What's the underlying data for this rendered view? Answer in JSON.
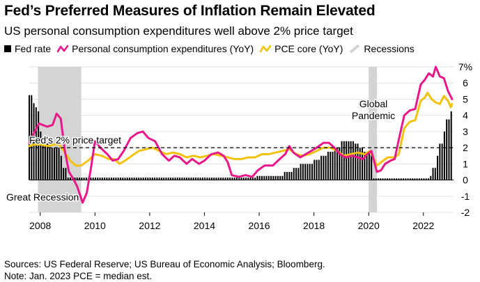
{
  "chart_data": {
    "type": "line",
    "title": "Fed’s Preferred Measures of Inflation Remain Elevated",
    "subtitle": "US personal consumption expenditures well above 2% price target",
    "legend": [
      {
        "key": "fed",
        "label": "Fed rate",
        "color": "#000000",
        "kind": "bar"
      },
      {
        "key": "pce",
        "label": "Personal consumption expenditures (YoY)",
        "color": "#e8178a",
        "kind": "line"
      },
      {
        "key": "core",
        "label": "PCE core (YoY)",
        "color": "#f2c20f",
        "kind": "line"
      },
      {
        "key": "rec",
        "label": "Recessions",
        "color": "#d4d4d4",
        "kind": "band"
      }
    ],
    "y_ticks": [
      "7%",
      "6",
      "5",
      "4",
      "3",
      "2",
      "1",
      "0",
      "-1",
      "-2"
    ],
    "y_tick_values": [
      7,
      6,
      5,
      4,
      3,
      2,
      1,
      0,
      -1,
      -2
    ],
    "ylim": [
      -2,
      7
    ],
    "xlim": [
      2007.6,
      2023.1
    ],
    "x_ticks": [
      "2008",
      "2010",
      "2012",
      "2014",
      "2016",
      "2018",
      "2020",
      "2022"
    ],
    "x_tick_values": [
      2008,
      2010,
      2012,
      2014,
      2016,
      2018,
      2020,
      2022
    ],
    "recessions": [
      [
        2007.92,
        2009.5
      ],
      [
        2020.0,
        2020.3
      ]
    ],
    "target": {
      "value": 2,
      "label": "Fed’s 2% price target"
    },
    "annotations": [
      {
        "text": "Great Recession"
      },
      {
        "text": "Global"
      },
      {
        "text": "Pandemic"
      }
    ],
    "fed_rate": [
      [
        2007.6,
        5.25
      ],
      [
        2007.7,
        4.75
      ],
      [
        2007.8,
        4.5
      ],
      [
        2007.9,
        4.25
      ],
      [
        2008.0,
        3.0
      ],
      [
        2008.1,
        2.25
      ],
      [
        2008.3,
        2.0
      ],
      [
        2008.75,
        1.5
      ],
      [
        2008.85,
        0.75
      ],
      [
        2008.95,
        0.15
      ],
      [
        2009.0,
        0.15
      ],
      [
        2015.9,
        0.25
      ],
      [
        2016.9,
        0.5
      ],
      [
        2017.2,
        0.75
      ],
      [
        2017.45,
        1.0
      ],
      [
        2017.95,
        1.25
      ],
      [
        2018.2,
        1.5
      ],
      [
        2018.45,
        1.75
      ],
      [
        2018.7,
        2.0
      ],
      [
        2018.95,
        2.4
      ],
      [
        2019.5,
        2.25
      ],
      [
        2019.65,
        2.0
      ],
      [
        2019.8,
        1.75
      ],
      [
        2020.15,
        0.1
      ],
      [
        2022.2,
        0.25
      ],
      [
        2022.3,
        0.75
      ],
      [
        2022.45,
        1.5
      ],
      [
        2022.55,
        2.25
      ],
      [
        2022.7,
        3.0
      ],
      [
        2022.85,
        3.75
      ],
      [
        2022.95,
        4.25
      ],
      [
        2023.05,
        4.5
      ]
    ],
    "pce": [
      [
        2007.6,
        2.3
      ],
      [
        2007.8,
        3.0
      ],
      [
        2007.95,
        3.5
      ],
      [
        2008.25,
        3.3
      ],
      [
        2008.45,
        3.4
      ],
      [
        2008.6,
        4.1
      ],
      [
        2008.75,
        3.8
      ],
      [
        2008.9,
        1.8
      ],
      [
        2009.05,
        0.5
      ],
      [
        2009.2,
        0.1
      ],
      [
        2009.35,
        -0.4
      ],
      [
        2009.55,
        -1.4
      ],
      [
        2009.7,
        -0.8
      ],
      [
        2009.85,
        0.7
      ],
      [
        2010.0,
        2.4
      ],
      [
        2010.2,
        2.0
      ],
      [
        2010.45,
        1.6
      ],
      [
        2010.65,
        1.2
      ],
      [
        2010.85,
        1.3
      ],
      [
        2011.05,
        1.8
      ],
      [
        2011.3,
        2.6
      ],
      [
        2011.55,
        2.9
      ],
      [
        2011.75,
        3.0
      ],
      [
        2011.95,
        2.6
      ],
      [
        2012.2,
        2.4
      ],
      [
        2012.45,
        1.6
      ],
      [
        2012.7,
        1.2
      ],
      [
        2012.9,
        1.5
      ],
      [
        2013.1,
        1.4
      ],
      [
        2013.35,
        1.0
      ],
      [
        2013.55,
        1.3
      ],
      [
        2013.8,
        1.0
      ],
      [
        2014.0,
        1.2
      ],
      [
        2014.25,
        1.6
      ],
      [
        2014.5,
        1.7
      ],
      [
        2014.7,
        1.5
      ],
      [
        2014.85,
        1.1
      ],
      [
        2015.0,
        0.3
      ],
      [
        2015.25,
        0.2
      ],
      [
        2015.5,
        0.3
      ],
      [
        2015.75,
        0.2
      ],
      [
        2015.95,
        0.6
      ],
      [
        2016.2,
        0.9
      ],
      [
        2016.5,
        0.9
      ],
      [
        2016.75,
        1.3
      ],
      [
        2016.95,
        1.6
      ],
      [
        2017.1,
        2.1
      ],
      [
        2017.25,
        1.7
      ],
      [
        2017.5,
        1.4
      ],
      [
        2017.7,
        1.6
      ],
      [
        2017.9,
        1.8
      ],
      [
        2018.1,
        2.0
      ],
      [
        2018.35,
        2.3
      ],
      [
        2018.55,
        2.3
      ],
      [
        2018.75,
        2.0
      ],
      [
        2018.95,
        1.6
      ],
      [
        2019.15,
        1.4
      ],
      [
        2019.4,
        1.5
      ],
      [
        2019.6,
        1.4
      ],
      [
        2019.8,
        1.3
      ],
      [
        2019.95,
        1.6
      ],
      [
        2020.1,
        1.8
      ],
      [
        2020.3,
        0.5
      ],
      [
        2020.45,
        0.6
      ],
      [
        2020.6,
        1.0
      ],
      [
        2020.8,
        1.2
      ],
      [
        2020.95,
        1.3
      ],
      [
        2021.1,
        2.5
      ],
      [
        2021.3,
        4.0
      ],
      [
        2021.5,
        4.3
      ],
      [
        2021.7,
        4.4
      ],
      [
        2021.9,
        5.9
      ],
      [
        2022.05,
        6.2
      ],
      [
        2022.2,
        6.6
      ],
      [
        2022.35,
        6.4
      ],
      [
        2022.45,
        7.0
      ],
      [
        2022.6,
        6.4
      ],
      [
        2022.75,
        6.3
      ],
      [
        2022.9,
        5.5
      ],
      [
        2023.05,
        5.0
      ]
    ],
    "core": [
      [
        2007.6,
        2.1
      ],
      [
        2007.8,
        2.2
      ],
      [
        2008.0,
        2.2
      ],
      [
        2008.3,
        2.1
      ],
      [
        2008.5,
        2.2
      ],
      [
        2008.7,
        2.2
      ],
      [
        2008.9,
        1.7
      ],
      [
        2009.1,
        1.2
      ],
      [
        2009.3,
        0.9
      ],
      [
        2009.5,
        0.9
      ],
      [
        2009.75,
        1.2
      ],
      [
        2010.0,
        1.6
      ],
      [
        2010.25,
        1.5
      ],
      [
        2010.5,
        1.3
      ],
      [
        2010.7,
        1.3
      ],
      [
        2010.9,
        1.0
      ],
      [
        2011.1,
        1.2
      ],
      [
        2011.35,
        1.5
      ],
      [
        2011.6,
        1.8
      ],
      [
        2011.85,
        1.9
      ],
      [
        2012.1,
        2.0
      ],
      [
        2012.35,
        1.8
      ],
      [
        2012.6,
        1.6
      ],
      [
        2012.85,
        1.7
      ],
      [
        2013.1,
        1.6
      ],
      [
        2013.35,
        1.4
      ],
      [
        2013.6,
        1.5
      ],
      [
        2013.85,
        1.4
      ],
      [
        2014.1,
        1.5
      ],
      [
        2014.35,
        1.6
      ],
      [
        2014.6,
        1.5
      ],
      [
        2014.85,
        1.4
      ],
      [
        2015.1,
        1.3
      ],
      [
        2015.35,
        1.3
      ],
      [
        2015.6,
        1.4
      ],
      [
        2015.85,
        1.4
      ],
      [
        2016.1,
        1.6
      ],
      [
        2016.35,
        1.6
      ],
      [
        2016.6,
        1.7
      ],
      [
        2016.85,
        1.8
      ],
      [
        2017.1,
        1.9
      ],
      [
        2017.35,
        1.6
      ],
      [
        2017.6,
        1.5
      ],
      [
        2017.85,
        1.6
      ],
      [
        2018.1,
        1.8
      ],
      [
        2018.35,
        2.0
      ],
      [
        2018.6,
        2.0
      ],
      [
        2018.85,
        1.8
      ],
      [
        2019.1,
        1.5
      ],
      [
        2019.35,
        1.6
      ],
      [
        2019.6,
        1.7
      ],
      [
        2019.85,
        1.6
      ],
      [
        2020.05,
        1.8
      ],
      [
        2020.3,
        0.9
      ],
      [
        2020.45,
        1.1
      ],
      [
        2020.7,
        1.4
      ],
      [
        2020.95,
        1.4
      ],
      [
        2021.1,
        1.6
      ],
      [
        2021.3,
        3.2
      ],
      [
        2021.5,
        3.6
      ],
      [
        2021.7,
        3.7
      ],
      [
        2021.9,
        4.9
      ],
      [
        2022.05,
        5.1
      ],
      [
        2022.15,
        5.4
      ],
      [
        2022.3,
        5.0
      ],
      [
        2022.45,
        4.8
      ],
      [
        2022.6,
        4.7
      ],
      [
        2022.75,
        5.2
      ],
      [
        2022.9,
        4.9
      ],
      [
        2023.0,
        4.5
      ],
      [
        2023.05,
        4.7
      ]
    ],
    "sources": "Sources: US Federal Reserve; US Bureau of Economic Analysis; Bloomberg.",
    "note": "Note: Jan. 2023 PCE = median est."
  }
}
